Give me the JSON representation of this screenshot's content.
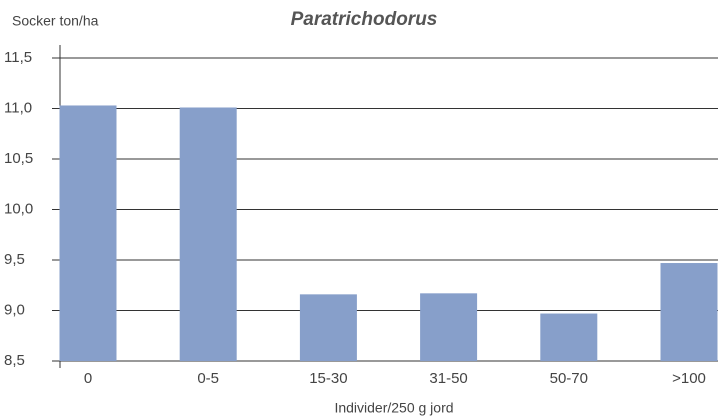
{
  "chart_data": {
    "type": "bar",
    "title": "Paratrichodorus",
    "y_label": "Socker ton/ha",
    "x_label": "Individer/250 g jord",
    "categories": [
      "0",
      "0-5",
      "15-30",
      "31-50",
      "50-70",
      ">100"
    ],
    "values": [
      11.03,
      11.01,
      9.16,
      9.17,
      8.97,
      9.47
    ],
    "color": "#879fca",
    "ylim": [
      8.5,
      11.5
    ],
    "yticks": [
      {
        "value": 8.5,
        "label": "8,5"
      },
      {
        "value": 9.0,
        "label": "9,0"
      },
      {
        "value": 9.5,
        "label": "9,5"
      },
      {
        "value": 10.0,
        "label": "10,0"
      },
      {
        "value": 10.5,
        "label": "10,5"
      },
      {
        "value": 11.0,
        "label": "11,0"
      },
      {
        "value": 11.5,
        "label": "11,5"
      }
    ],
    "grid": true
  }
}
